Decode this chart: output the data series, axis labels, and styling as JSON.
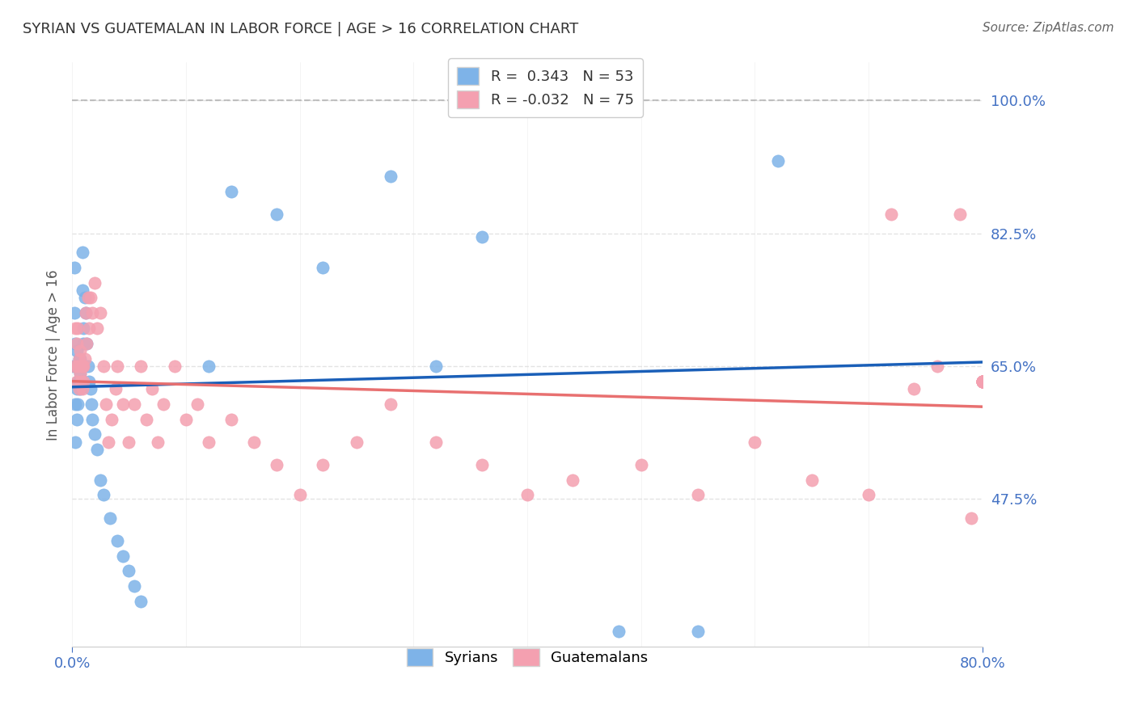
{
  "title": "SYRIAN VS GUATEMALAN IN LABOR FORCE | AGE > 16 CORRELATION CHART",
  "source_text": "Source: ZipAtlas.com",
  "xlabel": "",
  "ylabel": "In Labor Force | Age > 16",
  "xlim": [
    0.0,
    0.8
  ],
  "ylim": [
    0.28,
    1.05
  ],
  "xtick_labels": [
    "0.0%",
    "80.0%"
  ],
  "xtick_positions": [
    0.0,
    0.8
  ],
  "ytick_labels": [
    "100.0%",
    "82.5%",
    "65.0%",
    "47.5%"
  ],
  "ytick_positions": [
    1.0,
    0.825,
    0.65,
    0.475
  ],
  "syrian_color": "#7eb3e8",
  "guatemalan_color": "#f4a0b0",
  "syrian_line_color": "#1a5fb8",
  "guatemalan_line_color": "#e87070",
  "legend_label_syrian": "R =  0.343   N = 53",
  "legend_label_guatemalan": "R = -0.032   N = 75",
  "legend_labels_bottom": [
    "Syrians",
    "Guatemalans"
  ],
  "syrian_R": 0.343,
  "syrian_N": 53,
  "guatemalan_R": -0.032,
  "guatemalan_N": 75,
  "syrian_x": [
    0.001,
    0.002,
    0.002,
    0.003,
    0.003,
    0.003,
    0.003,
    0.004,
    0.004,
    0.004,
    0.004,
    0.005,
    0.005,
    0.005,
    0.006,
    0.006,
    0.007,
    0.007,
    0.007,
    0.008,
    0.008,
    0.009,
    0.009,
    0.01,
    0.01,
    0.011,
    0.012,
    0.013,
    0.014,
    0.015,
    0.016,
    0.017,
    0.018,
    0.02,
    0.022,
    0.025,
    0.028,
    0.033,
    0.04,
    0.045,
    0.05,
    0.055,
    0.06,
    0.12,
    0.14,
    0.18,
    0.22,
    0.28,
    0.32,
    0.36,
    0.48,
    0.55,
    0.62
  ],
  "syrian_y": [
    0.65,
    0.72,
    0.78,
    0.55,
    0.6,
    0.65,
    0.68,
    0.58,
    0.62,
    0.65,
    0.67,
    0.6,
    0.63,
    0.65,
    0.63,
    0.66,
    0.62,
    0.64,
    0.66,
    0.63,
    0.65,
    0.8,
    0.75,
    0.68,
    0.7,
    0.74,
    0.72,
    0.68,
    0.65,
    0.63,
    0.62,
    0.6,
    0.58,
    0.56,
    0.54,
    0.5,
    0.48,
    0.45,
    0.42,
    0.4,
    0.38,
    0.36,
    0.34,
    0.65,
    0.88,
    0.85,
    0.78,
    0.9,
    0.65,
    0.82,
    0.3,
    0.3,
    0.92
  ],
  "guatemalan_x": [
    0.002,
    0.003,
    0.004,
    0.004,
    0.005,
    0.005,
    0.006,
    0.006,
    0.007,
    0.007,
    0.008,
    0.008,
    0.009,
    0.009,
    0.01,
    0.01,
    0.011,
    0.012,
    0.013,
    0.014,
    0.015,
    0.016,
    0.018,
    0.02,
    0.022,
    0.025,
    0.028,
    0.03,
    0.032,
    0.035,
    0.038,
    0.04,
    0.045,
    0.05,
    0.055,
    0.06,
    0.065,
    0.07,
    0.075,
    0.08,
    0.09,
    0.1,
    0.11,
    0.12,
    0.14,
    0.16,
    0.18,
    0.2,
    0.22,
    0.25,
    0.28,
    0.32,
    0.36,
    0.4,
    0.44,
    0.5,
    0.55,
    0.6,
    0.65,
    0.7,
    0.72,
    0.74,
    0.76,
    0.78,
    0.79,
    0.8,
    0.8,
    0.8,
    0.8,
    0.8,
    0.8,
    0.8,
    0.8,
    0.8,
    0.8
  ],
  "guatemalan_y": [
    0.65,
    0.7,
    0.63,
    0.68,
    0.65,
    0.7,
    0.62,
    0.66,
    0.64,
    0.67,
    0.63,
    0.65,
    0.62,
    0.65,
    0.63,
    0.65,
    0.66,
    0.72,
    0.68,
    0.74,
    0.7,
    0.74,
    0.72,
    0.76,
    0.7,
    0.72,
    0.65,
    0.6,
    0.55,
    0.58,
    0.62,
    0.65,
    0.6,
    0.55,
    0.6,
    0.65,
    0.58,
    0.62,
    0.55,
    0.6,
    0.65,
    0.58,
    0.6,
    0.55,
    0.58,
    0.55,
    0.52,
    0.48,
    0.52,
    0.55,
    0.6,
    0.55,
    0.52,
    0.48,
    0.5,
    0.52,
    0.48,
    0.55,
    0.5,
    0.48,
    0.85,
    0.62,
    0.65,
    0.85,
    0.45,
    0.63,
    0.63,
    0.63,
    0.63,
    0.63,
    0.63,
    0.63,
    0.63,
    0.63,
    0.63
  ],
  "background_color": "#ffffff",
  "grid_color": "#dddddd",
  "title_color": "#333333",
  "axis_label_color": "#555555",
  "ytick_color": "#4472c4",
  "xtick_color": "#4472c4"
}
